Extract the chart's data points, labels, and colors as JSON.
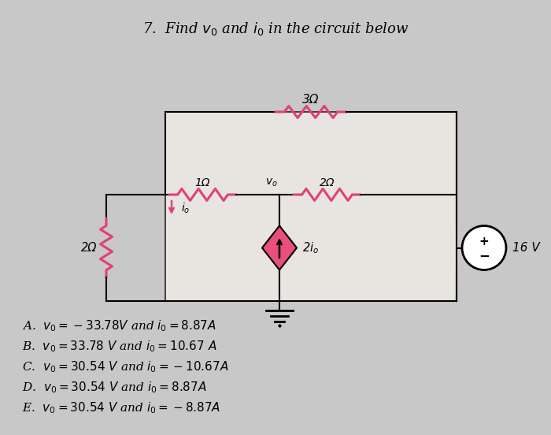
{
  "title": "7.  Find $v_0$ and $i_0$ in the circuit below",
  "bg_color": "#c8c8c8",
  "circuit_bg": "#e8e4e0",
  "resistor_color": "#e0407a",
  "wire_color": "#000000",
  "source_fill": "#e8507a",
  "answer_A": "A.  $v_0 = -33.78V$ and $i_0 = 8.87A$",
  "answer_B": "B.  $v_0 = 33.78\\ V$ and $i_0 = 10.67\\ A$",
  "answer_C": "C.  $v_0 = 30.54\\ V$ and $i_0 = -10.67A$",
  "answer_D": "D.  $v_0 = 30.54\\ V$ and $i_0 = 8.87A$",
  "answer_E": "E.  $v_0 = 30.54\\ V$ and $i_0 = -8.87A$",
  "label_3ohm": "3Ω",
  "label_1ohm": "1Ω",
  "label_2ohm_top": "2Ω",
  "label_2ohm_left": "2Ω",
  "label_current_source": "2$i_o$",
  "label_voltage_source": "16 V",
  "label_io": "$i_o$",
  "label_vo": "$v_o$"
}
